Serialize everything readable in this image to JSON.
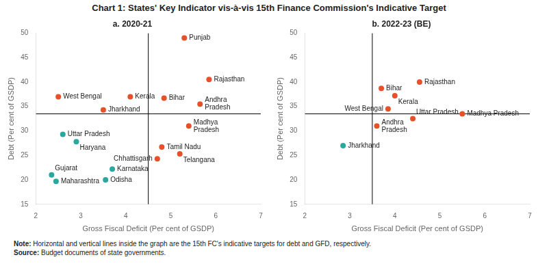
{
  "title": "Chart 1: States' Key Indicator vis-à-vis 15th Finance Commission's Indicative Target",
  "note": "Note: Horizontal and vertical lines inside the graph are the 15th FC's indicative targets for debt and GFD, respectively.",
  "source": "Source: Budget documents of state governments.",
  "chart_data": [
    {
      "type": "scatter",
      "title": "a. 2020-21",
      "xlabel": "Gross Fiscal Deficit (Per cent of GSDP)",
      "ylabel": "Debt (Per cent of GSDP)",
      "xlim": [
        2,
        7
      ],
      "xticks": [
        2,
        3,
        4,
        5,
        6,
        7
      ],
      "ylim": [
        15,
        50
      ],
      "yticks": [
        15,
        20,
        25,
        30,
        35,
        40,
        45,
        50
      ],
      "grid": false,
      "hline": 33.5,
      "vline": 4.5,
      "series": [
        {
          "color": "#E8502A",
          "labels": [
            "Punjab",
            "Rajasthan",
            "Bihar",
            "Andhra\nPradesh",
            "Kerala",
            "West Bengal",
            "Jharkhand",
            "Madhya\nPradesh",
            "Tamil Nadu",
            "Telangana",
            "Chhattisgarh"
          ],
          "x": [
            5.3,
            5.85,
            4.85,
            5.65,
            4.1,
            2.5,
            3.5,
            5.4,
            4.8,
            5.2,
            4.7
          ],
          "y": [
            49.0,
            40.5,
            36.7,
            35.5,
            37.0,
            37.0,
            34.3,
            31.0,
            26.7,
            25.3,
            24.3
          ]
        },
        {
          "color": "#2AA89E",
          "labels": [
            "Uttar Pradesh",
            "Haryana",
            "Gujarat",
            "Maharashtra",
            "Karnataka",
            "Odisha"
          ],
          "x": [
            2.6,
            2.9,
            2.35,
            2.45,
            3.7,
            3.55
          ],
          "y": [
            29.3,
            27.8,
            21.0,
            19.7,
            22.2,
            20.0
          ]
        }
      ]
    },
    {
      "type": "scatter",
      "title": "b. 2022-23 (BE)",
      "xlabel": "Gross Fiscal Deficit (Per cent of GSDP)",
      "ylabel": "Debt (Per cent of GSDP)",
      "xlim": [
        2,
        7
      ],
      "xticks": [
        2,
        3,
        4,
        5,
        6,
        7
      ],
      "ylim": [
        15,
        50
      ],
      "yticks": [
        15,
        20,
        25,
        30,
        35,
        40,
        45,
        50
      ],
      "grid": false,
      "hline": 33.5,
      "vline": 3.5,
      "series": [
        {
          "color": "#E8502A",
          "labels": [
            "Rajasthan",
            "Bihar",
            "Kerala",
            "West Bengal",
            "Madhya Pradesh",
            "Andhra\nPradesh",
            "Uttar Pradesh"
          ],
          "x": [
            4.55,
            3.7,
            4.0,
            3.85,
            5.5,
            3.6,
            4.4
          ],
          "y": [
            40.0,
            38.7,
            37.2,
            34.5,
            33.5,
            31.0,
            32.5
          ]
        },
        {
          "color": "#2AA89E",
          "labels": [
            "Jharkhand"
          ],
          "x": [
            2.85
          ],
          "y": [
            27.0
          ]
        }
      ]
    }
  ]
}
